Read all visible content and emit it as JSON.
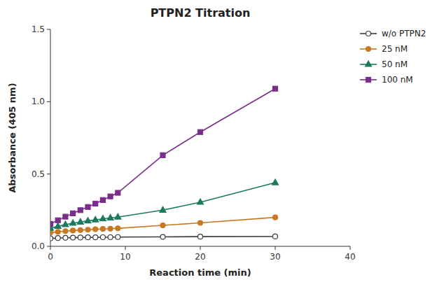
{
  "chart_data": {
    "type": "line",
    "title": "PTPN2 Titration",
    "x_label": "Reaction time (min)",
    "y_label": "Absorbance (405 nm)",
    "x": [
      0,
      1,
      2,
      3,
      4,
      5,
      6,
      7,
      8,
      9,
      15,
      20,
      30
    ],
    "series": [
      {
        "name": "w/o PTPN2",
        "color": "#3d3d3d",
        "marker": "open-circle",
        "values": [
          0.055,
          0.057,
          0.059,
          0.06,
          0.061,
          0.062,
          0.062,
          0.063,
          0.063,
          0.064,
          0.065,
          0.067,
          0.068
        ]
      },
      {
        "name": "25 nM",
        "color": "#C87820",
        "marker": "circle",
        "values": [
          0.095,
          0.1,
          0.105,
          0.109,
          0.112,
          0.115,
          0.118,
          0.12,
          0.122,
          0.124,
          0.145,
          0.162,
          0.2
        ]
      },
      {
        "name": "50 nM",
        "color": "#1A7A5E",
        "marker": "triangle",
        "values": [
          0.125,
          0.138,
          0.15,
          0.16,
          0.168,
          0.176,
          0.183,
          0.19,
          0.196,
          0.202,
          0.25,
          0.305,
          0.44
        ]
      },
      {
        "name": "100 nM",
        "color": "#7B2D8B",
        "marker": "square",
        "values": [
          0.155,
          0.18,
          0.205,
          0.228,
          0.25,
          0.272,
          0.295,
          0.32,
          0.345,
          0.37,
          0.63,
          0.79,
          1.09
        ]
      }
    ],
    "xlim": [
      0,
      40
    ],
    "ylim": [
      0,
      1.5
    ],
    "xticks": [
      0,
      10,
      20,
      30,
      40
    ],
    "yticks": [
      {
        "value": 0.0,
        "label": "0.0"
      },
      0.5,
      {
        "value": 1.0,
        "label": "1.0"
      },
      1.5
    ],
    "grid": false,
    "legend": "right"
  }
}
